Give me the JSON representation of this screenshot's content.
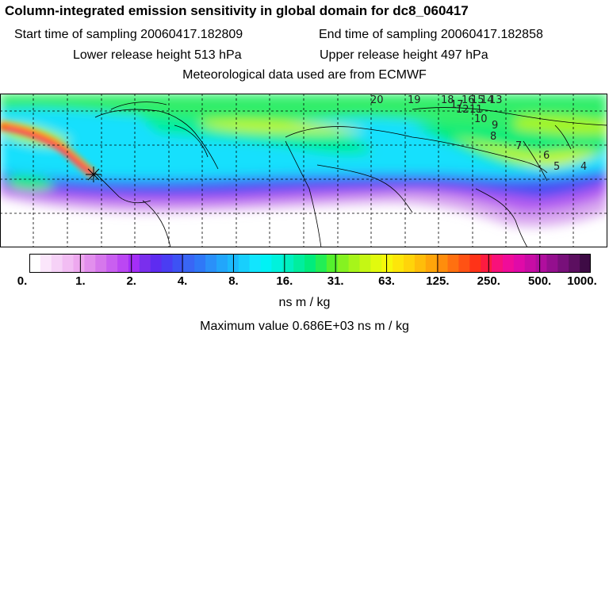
{
  "title": "Column-integrated emission sensitivity in global domain for dc8_060417",
  "sampling": {
    "start": "Start time of sampling 20060417.182809",
    "end": "End time of sampling 20060417.182858"
  },
  "release": {
    "lower": "Lower release height  513 hPa",
    "upper": "Upper release height  497 hPa"
  },
  "meteo": "Meteorological data used are from ECMWF",
  "map": {
    "trajectory_labels": [
      "20",
      "19",
      "18",
      "17",
      "16",
      "15",
      "14",
      "13",
      "12",
      "11",
      "10",
      "9",
      "8",
      "7",
      "6",
      "5",
      "4"
    ],
    "gridlines": true,
    "projection": "lat-lon"
  },
  "colorbar": {
    "tick_labels": [
      "0.",
      "1.",
      "2.",
      "4.",
      "8.",
      "16.",
      "31.",
      "63.",
      "125.",
      "250.",
      "500.",
      "1000."
    ],
    "units": "ns m / kg",
    "colors": [
      "#ffffff",
      "#fbe6fb",
      "#f6d2f7",
      "#f2bdf3",
      "#eea8ef",
      "#e28fed",
      "#d677ec",
      "#c95ff0",
      "#bb47f3",
      "#a42ef7",
      "#7a2fed",
      "#5e2cf0",
      "#4a3df3",
      "#3d52f4",
      "#3966f5",
      "#2f78f7",
      "#2a90f9",
      "#22a6fb",
      "#1cbafc",
      "#18cffd",
      "#12e5fe",
      "#00f2f5",
      "#00f2dc",
      "#00f0c0",
      "#00ee9e",
      "#00ec7c",
      "#22ee55",
      "#55f02d",
      "#85f221",
      "#a7f51a",
      "#c5f714",
      "#e1fa0e",
      "#f6f80a",
      "#fde60a",
      "#ffd40a",
      "#ffbd0a",
      "#ffa50a",
      "#ff8d0c",
      "#ff7010",
      "#ff5214",
      "#ff3318",
      "#fd1b40",
      "#f8117a",
      "#f00c99",
      "#e00aa8",
      "#c80ca5",
      "#b00e9e",
      "#940f8e",
      "#78107a",
      "#5c0f60",
      "#3e0b45"
    ]
  },
  "max_value": "Maximum value  0.686E+03 ns m / kg"
}
